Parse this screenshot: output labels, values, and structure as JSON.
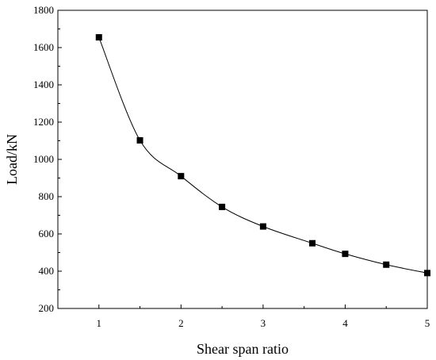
{
  "chart_data": {
    "type": "line",
    "title": "",
    "xlabel": "Shear span ratio",
    "ylabel": "Load/kN",
    "xlim": [
      0.5,
      5
    ],
    "ylim": [
      200,
      1800
    ],
    "x_ticks": [
      1,
      2,
      3,
      4,
      5
    ],
    "x_tick_labels": [
      "1",
      "2",
      "3",
      "4",
      "5"
    ],
    "x_minor_ticks": [
      1.5,
      2.5,
      3.5,
      4.5
    ],
    "y_ticks": [
      200,
      400,
      600,
      800,
      1000,
      1200,
      1400,
      1600,
      1800
    ],
    "y_tick_labels": [
      "200",
      "400",
      "600",
      "800",
      "1000",
      "1200",
      "1400",
      "1600",
      "1800"
    ],
    "y_minor_ticks": [
      300,
      500,
      700,
      900,
      1100,
      1300,
      1500,
      1700
    ],
    "grid": false,
    "marker": "square",
    "line_color": "#000000",
    "marker_color": "#000000",
    "series": [
      {
        "x": [
          1,
          1.5,
          2,
          2.5,
          3,
          3.6,
          4,
          4.5,
          5
        ],
        "y": [
          1655,
          1102,
          910,
          745,
          640,
          550,
          493,
          435,
          390
        ]
      }
    ]
  }
}
